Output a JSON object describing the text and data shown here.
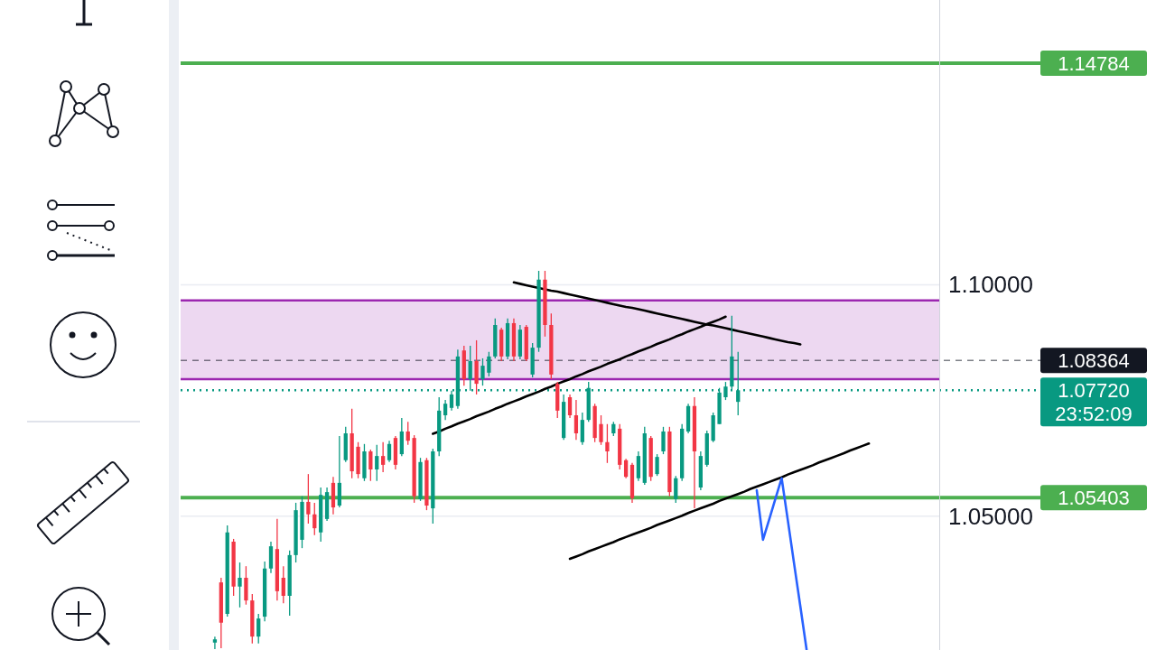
{
  "chart_data": {
    "type": "candlestick",
    "categories": [
      null,
      null,
      null,
      null,
      null,
      null,
      null,
      null,
      null,
      null,
      null,
      null,
      null,
      null,
      null,
      null,
      null,
      null,
      null,
      null,
      null,
      null,
      null,
      null,
      null,
      null,
      null,
      null,
      null,
      null,
      null,
      null,
      null,
      null,
      null,
      null,
      null,
      null,
      null,
      null,
      null,
      null,
      null,
      null,
      null,
      null,
      null,
      null,
      null,
      null,
      null,
      null,
      null,
      null,
      null,
      null,
      null,
      null,
      null,
      null,
      null,
      null,
      null,
      null,
      null,
      null,
      null,
      null,
      null,
      null,
      null,
      null,
      null,
      null,
      null,
      null,
      null,
      null,
      null,
      null,
      null,
      null,
      null,
      null,
      null,
      null,
      null,
      null,
      null,
      null,
      null,
      null,
      null,
      null,
      null,
      null,
      null,
      null,
      null,
      null,
      null,
      null,
      null,
      null,
      null,
      null
    ],
    "ohlc": [
      [
        1.0227,
        1.024,
        1.0213,
        1.0234
      ],
      [
        1.0357,
        1.0367,
        1.0215,
        1.027
      ],
      [
        1.0289,
        1.048,
        1.0283,
        1.0465
      ],
      [
        1.0445,
        1.0451,
        1.0328,
        1.0348
      ],
      [
        1.0348,
        1.04,
        1.0303,
        1.0367
      ],
      [
        1.0367,
        1.0392,
        1.0309,
        1.0318
      ],
      [
        1.0318,
        1.0332,
        1.0225,
        1.024
      ],
      [
        1.024,
        1.0289,
        1.0225,
        1.0279
      ],
      [
        1.0283,
        1.0402,
        1.0273,
        1.0387
      ],
      [
        1.0387,
        1.0445,
        1.0377,
        1.0435
      ],
      [
        1.0429,
        1.0494,
        1.0318,
        1.0338
      ],
      [
        1.0367,
        1.0392,
        1.0312,
        1.0328
      ],
      [
        1.0328,
        1.0426,
        1.0285,
        1.0416
      ],
      [
        1.0416,
        1.0529,
        1.04,
        1.0513
      ],
      [
        1.0449,
        1.0543,
        1.0431,
        1.0531
      ],
      [
        1.0531,
        1.0591,
        1.0484,
        1.0504
      ],
      [
        1.0504,
        1.0529,
        1.0459,
        1.0474
      ],
      [
        1.0465,
        1.0562,
        1.0445,
        1.0546
      ],
      [
        1.0494,
        1.0562,
        1.049,
        1.0552
      ],
      [
        1.0572,
        1.0585,
        1.0504,
        1.0519
      ],
      [
        1.0523,
        1.0673,
        1.0519,
        1.0572
      ],
      [
        1.0621,
        1.0693,
        1.0617,
        1.0679
      ],
      [
        1.0679,
        1.0732,
        1.0582,
        1.0597
      ],
      [
        1.065,
        1.066,
        1.0582,
        1.0591
      ],
      [
        1.0582,
        1.0656,
        1.0576,
        1.064
      ],
      [
        1.064,
        1.0644,
        1.0576,
        1.0601
      ],
      [
        1.0601,
        1.0654,
        1.0576,
        1.063
      ],
      [
        1.063,
        1.066,
        1.0595,
        1.0611
      ],
      [
        1.0621,
        1.0663,
        1.0617,
        1.0656
      ],
      [
        1.0669,
        1.0673,
        1.0601,
        1.0611
      ],
      [
        1.0634,
        1.0712,
        1.063,
        1.0683
      ],
      [
        1.0683,
        1.0704,
        1.0654,
        1.0663
      ],
      [
        1.0669,
        1.0675,
        1.0529,
        1.0543
      ],
      [
        1.0537,
        1.0626,
        1.0533,
        1.0617
      ],
      [
        1.0621,
        1.0626,
        1.0513,
        1.0523
      ],
      [
        1.0517,
        1.0646,
        1.0484,
        1.064
      ],
      [
        1.064,
        1.0757,
        1.063,
        1.0728
      ],
      [
        1.0718,
        1.0751,
        1.0708,
        1.0743
      ],
      [
        1.0734,
        1.0771,
        1.0728,
        1.0763
      ],
      [
        1.0738,
        1.086,
        1.0732,
        1.0845
      ],
      [
        1.0858,
        1.0868,
        1.0782,
        1.0796
      ],
      [
        1.0796,
        1.0868,
        1.0771,
        1.0835
      ],
      [
        1.0835,
        1.088,
        1.0763,
        1.0786
      ],
      [
        1.0796,
        1.0841,
        1.0782,
        1.0825
      ],
      [
        1.081,
        1.0855,
        1.0802,
        1.0845
      ],
      [
        1.0845,
        1.0927,
        1.0841,
        1.0913
      ],
      [
        1.0903,
        1.0907,
        1.0835,
        1.0845
      ],
      [
        1.0845,
        1.0927,
        1.0839,
        1.0917
      ],
      [
        1.0917,
        1.0927,
        1.0835,
        1.0845
      ],
      [
        1.0845,
        1.0913,
        1.0839,
        1.0903
      ],
      [
        1.0909,
        1.0913,
        1.0835,
        1.0839
      ],
      [
        1.0806,
        1.0874,
        1.08,
        1.0864
      ],
      [
        1.0864,
        1.103,
        1.0855,
        1.1011
      ],
      [
        1.1011,
        1.103,
        1.0888,
        1.0913
      ],
      [
        1.0913,
        1.0938,
        1.0796,
        1.0806
      ],
      [
        1.0786,
        1.079,
        1.0712,
        1.0728
      ],
      [
        1.0669,
        1.0763,
        1.0665,
        1.0747
      ],
      [
        1.0757,
        1.0763,
        1.0712,
        1.0718
      ],
      [
        1.0718,
        1.0751,
        1.0665,
        1.0679
      ],
      [
        1.066,
        1.0724,
        1.0654,
        1.0708
      ],
      [
        1.0708,
        1.079,
        1.0704,
        1.0777
      ],
      [
        1.0738,
        1.0743,
        1.066,
        1.0669
      ],
      [
        1.0699,
        1.0718,
        1.0654,
        1.066
      ],
      [
        1.066,
        1.0699,
        1.0615,
        1.064
      ],
      [
        1.0679,
        1.0704,
        1.0673,
        1.0699
      ],
      [
        1.0689,
        1.0699,
        1.0601,
        1.0611
      ],
      [
        1.0621,
        1.0624,
        1.0582,
        1.0585
      ],
      [
        1.0611,
        1.0615,
        1.0529,
        1.0539
      ],
      [
        1.0582,
        1.064,
        1.0576,
        1.063
      ],
      [
        1.0572,
        1.0693,
        1.0568,
        1.0679
      ],
      [
        1.0669,
        1.0673,
        1.0576,
        1.0585
      ],
      [
        1.0591,
        1.0634,
        1.0587,
        1.0628
      ],
      [
        1.064,
        1.0693,
        1.0634,
        1.0683
      ],
      [
        1.0683,
        1.0693,
        1.0543,
        1.0552
      ],
      [
        1.0537,
        1.0587,
        1.0529,
        1.0582
      ],
      [
        1.0582,
        1.0699,
        1.0576,
        1.0689
      ],
      [
        1.0683,
        1.0743,
        1.0679,
        1.0738
      ],
      [
        1.0738,
        1.0757,
        1.0517,
        1.064
      ],
      [
        1.0562,
        1.064,
        1.0556,
        1.063
      ],
      [
        1.0611,
        1.0685,
        1.0607,
        1.0679
      ],
      [
        1.0663,
        1.0724,
        1.066,
        1.0718
      ],
      [
        1.0699,
        1.0777,
        1.0699,
        1.0767
      ],
      [
        1.0757,
        1.079,
        1.0751,
        1.078
      ],
      [
        1.078,
        1.0933,
        1.0771,
        1.0845
      ],
      [
        1.0747,
        1.0855,
        1.0718,
        1.0772
      ],
      null,
      null,
      null,
      null,
      null,
      null,
      null,
      null,
      null,
      null,
      null,
      null,
      null,
      null,
      null,
      null,
      null,
      null,
      null,
      null,
      null
    ],
    "colors": [
      "#089981",
      "#f23645",
      "#089981",
      "#f23645",
      "#089981",
      "#f23645",
      "#f23645",
      "#089981",
      "#089981",
      "#089981",
      "#f23645",
      "#f23645",
      "#089981",
      "#089981",
      "#089981",
      "#f23645",
      "#f23645",
      "#089981",
      "#089981",
      "#f23645",
      "#089981",
      "#089981",
      "#f23645",
      "#f23645",
      "#089981",
      "#f23645",
      "#089981",
      "#f23645",
      "#089981",
      "#f23645",
      "#089981",
      "#f23645",
      "#f23645",
      "#089981",
      "#f23645",
      "#089981",
      "#089981",
      "#089981",
      "#089981",
      "#089981",
      "#f23645",
      "#089981",
      "#f23645",
      "#089981",
      "#089981",
      "#089981",
      "#f23645",
      "#089981",
      "#f23645",
      "#089981",
      "#f23645",
      "#089981",
      "#089981",
      "#f23645",
      "#f23645",
      "#f23645",
      "#089981",
      "#f23645",
      "#f23645",
      "#089981",
      "#089981",
      "#f23645",
      "#f23645",
      "#f23645",
      "#089981",
      "#f23645",
      "#f23645",
      "#f23645",
      "#089981",
      "#089981",
      "#f23645",
      "#089981",
      "#089981",
      "#f23645",
      "#089981",
      "#089981",
      "#089981",
      "#f23645",
      "#089981",
      "#089981",
      "#089981",
      "#089981",
      "#089981",
      "#089981",
      "#089981",
      null,
      null,
      null,
      null,
      null,
      null,
      null,
      null,
      null,
      null,
      null,
      null,
      null,
      null,
      null,
      null,
      null,
      null,
      null,
      null,
      null
    ],
    "series": [
      {
        "type": "line",
        "color": "#000000",
        "values": [
          null,
          null,
          null,
          null,
          null,
          null,
          null,
          null,
          null,
          null,
          null,
          null,
          null,
          null,
          null,
          null,
          null,
          null,
          null,
          null,
          null,
          null,
          null,
          null,
          null,
          null,
          null,
          null,
          null,
          null,
          null,
          null,
          null,
          null,
          null,
          null,
          null,
          null,
          null,
          null,
          null,
          null,
          null,
          null,
          null,
          null,
          null,
          null,
          1.1005,
          1.1002,
          1.0999,
          1.0996,
          1.0993,
          1.099,
          1.0987,
          1.0985,
          1.0982,
          1.0979,
          1.0976,
          1.0973,
          1.097,
          1.0967,
          1.0964,
          1.0961,
          1.0958,
          1.0955,
          1.0952,
          1.095,
          1.0947,
          1.0944,
          1.0941,
          1.0938,
          1.0935,
          1.0932,
          1.0929,
          1.0926,
          1.0923,
          1.092,
          1.0917,
          1.0914,
          1.0912,
          1.0909,
          1.0906,
          1.0903,
          1.09,
          1.0897,
          1.0894,
          1.0891,
          1.0888,
          1.0885,
          1.0882,
          1.0879,
          1.0876,
          1.0874,
          1.0871,
          null,
          null,
          null,
          null,
          null,
          null,
          null,
          null,
          null,
          null,
          null
        ]
      },
      {
        "type": "line",
        "color": "#000000",
        "values": [
          null,
          null,
          null,
          null,
          null,
          null,
          null,
          null,
          null,
          null,
          null,
          null,
          null,
          null,
          null,
          null,
          null,
          null,
          null,
          null,
          null,
          null,
          null,
          null,
          null,
          null,
          null,
          null,
          null,
          null,
          null,
          null,
          null,
          null,
          null,
          1.0678,
          1.0683,
          1.0689,
          1.0694,
          1.07,
          1.0705,
          1.071,
          1.0716,
          1.0721,
          1.0726,
          1.0732,
          1.0737,
          1.0743,
          1.0748,
          1.0753,
          1.0759,
          1.0764,
          1.0769,
          1.0775,
          1.078,
          1.0786,
          1.0791,
          1.0796,
          1.0802,
          1.0807,
          1.0813,
          1.0818,
          1.0823,
          1.0829,
          1.0834,
          1.0839,
          1.0845,
          1.085,
          1.0856,
          1.0861,
          1.0866,
          1.0872,
          1.0877,
          1.0882,
          1.0888,
          1.0893,
          1.0899,
          1.0904,
          1.0909,
          1.0915,
          1.092,
          1.0925,
          1.0931,
          null,
          null,
          null,
          null,
          null,
          null,
          null,
          null,
          null,
          null,
          null,
          null,
          null,
          null,
          null,
          null,
          null,
          null,
          null,
          null,
          null,
          null,
          null
        ]
      },
      {
        "type": "line",
        "color": "#000000",
        "values": [
          null,
          null,
          null,
          null,
          null,
          null,
          null,
          null,
          null,
          null,
          null,
          null,
          null,
          null,
          null,
          null,
          null,
          null,
          null,
          null,
          null,
          null,
          null,
          null,
          null,
          null,
          null,
          null,
          null,
          null,
          null,
          null,
          null,
          null,
          null,
          null,
          null,
          null,
          null,
          null,
          null,
          null,
          null,
          null,
          null,
          null,
          null,
          null,
          null,
          null,
          null,
          null,
          null,
          null,
          null,
          null,
          null,
          1.0408,
          1.0413,
          1.0418,
          1.0424,
          1.0429,
          1.0434,
          1.0439,
          1.0444,
          1.045,
          1.0455,
          1.046,
          1.0465,
          1.047,
          1.0475,
          1.0481,
          1.0486,
          1.0491,
          1.0496,
          1.0501,
          1.0507,
          1.0512,
          1.0517,
          1.0522,
          1.0527,
          1.0533,
          1.0538,
          1.0543,
          1.0548,
          1.0553,
          1.0559,
          1.0564,
          1.0569,
          1.0574,
          1.0579,
          1.0584,
          1.059,
          1.0595,
          1.06,
          1.0605,
          1.061,
          1.0616,
          1.0621,
          1.0626,
          1.0631,
          1.0636,
          1.0642,
          1.0647,
          1.0652,
          1.0657
        ]
      },
      {
        "type": "line",
        "color": "#2962ff",
        "values": [
          null,
          null,
          null,
          null,
          null,
          null,
          null,
          null,
          null,
          null,
          null,
          null,
          null,
          null,
          null,
          null,
          null,
          null,
          null,
          null,
          null,
          null,
          null,
          null,
          null,
          null,
          null,
          null,
          null,
          null,
          null,
          null,
          null,
          null,
          null,
          null,
          null,
          null,
          null,
          null,
          null,
          null,
          null,
          null,
          null,
          null,
          null,
          null,
          null,
          null,
          null,
          null,
          null,
          null,
          null,
          null,
          null,
          null,
          null,
          null,
          null,
          null,
          null,
          null,
          null,
          null,
          null,
          null,
          null,
          null,
          null,
          null,
          null,
          null,
          null,
          null,
          null,
          null,
          null,
          null,
          null,
          null,
          null,
          null,
          null,
          null,
          null,
          1.0556,
          1.0449,
          1.0493,
          1.0538,
          1.0582,
          1.049,
          1.0397,
          1.0305,
          1.0212,
          null,
          null,
          null,
          null,
          null,
          null,
          null,
          null,
          null,
          null
        ]
      }
    ],
    "ylim": [
      1.0211,
      1.1615
    ],
    "yticks": [
      {
        "value": 1.05,
        "label": "1.05000"
      },
      {
        "value": 1.1,
        "label": "1.10000"
      }
    ],
    "grid": "y",
    "tick_labels": "y",
    "bands": [
      {
        "axis": "y",
        "from": 1.0796,
        "to": 1.0966,
        "color": "#9c27b0"
      }
    ],
    "ref_lines": [
      {
        "axis": "y",
        "value": 1.14784,
        "label": "1.14784",
        "color": "#4caf50"
      },
      {
        "axis": "y",
        "value": 1.05403,
        "label": "1.05403",
        "color": "#4caf50"
      },
      {
        "axis": "y",
        "value": 1.08364,
        "label": "1.08364",
        "color": "#131722",
        "line_style": "dashed"
      },
      {
        "axis": "y",
        "value": 1.0772,
        "label": "1.07720",
        "color": "#089981",
        "line_style": "dotted"
      }
    ],
    "annotations": [
      "23:52:09"
    ]
  }
}
